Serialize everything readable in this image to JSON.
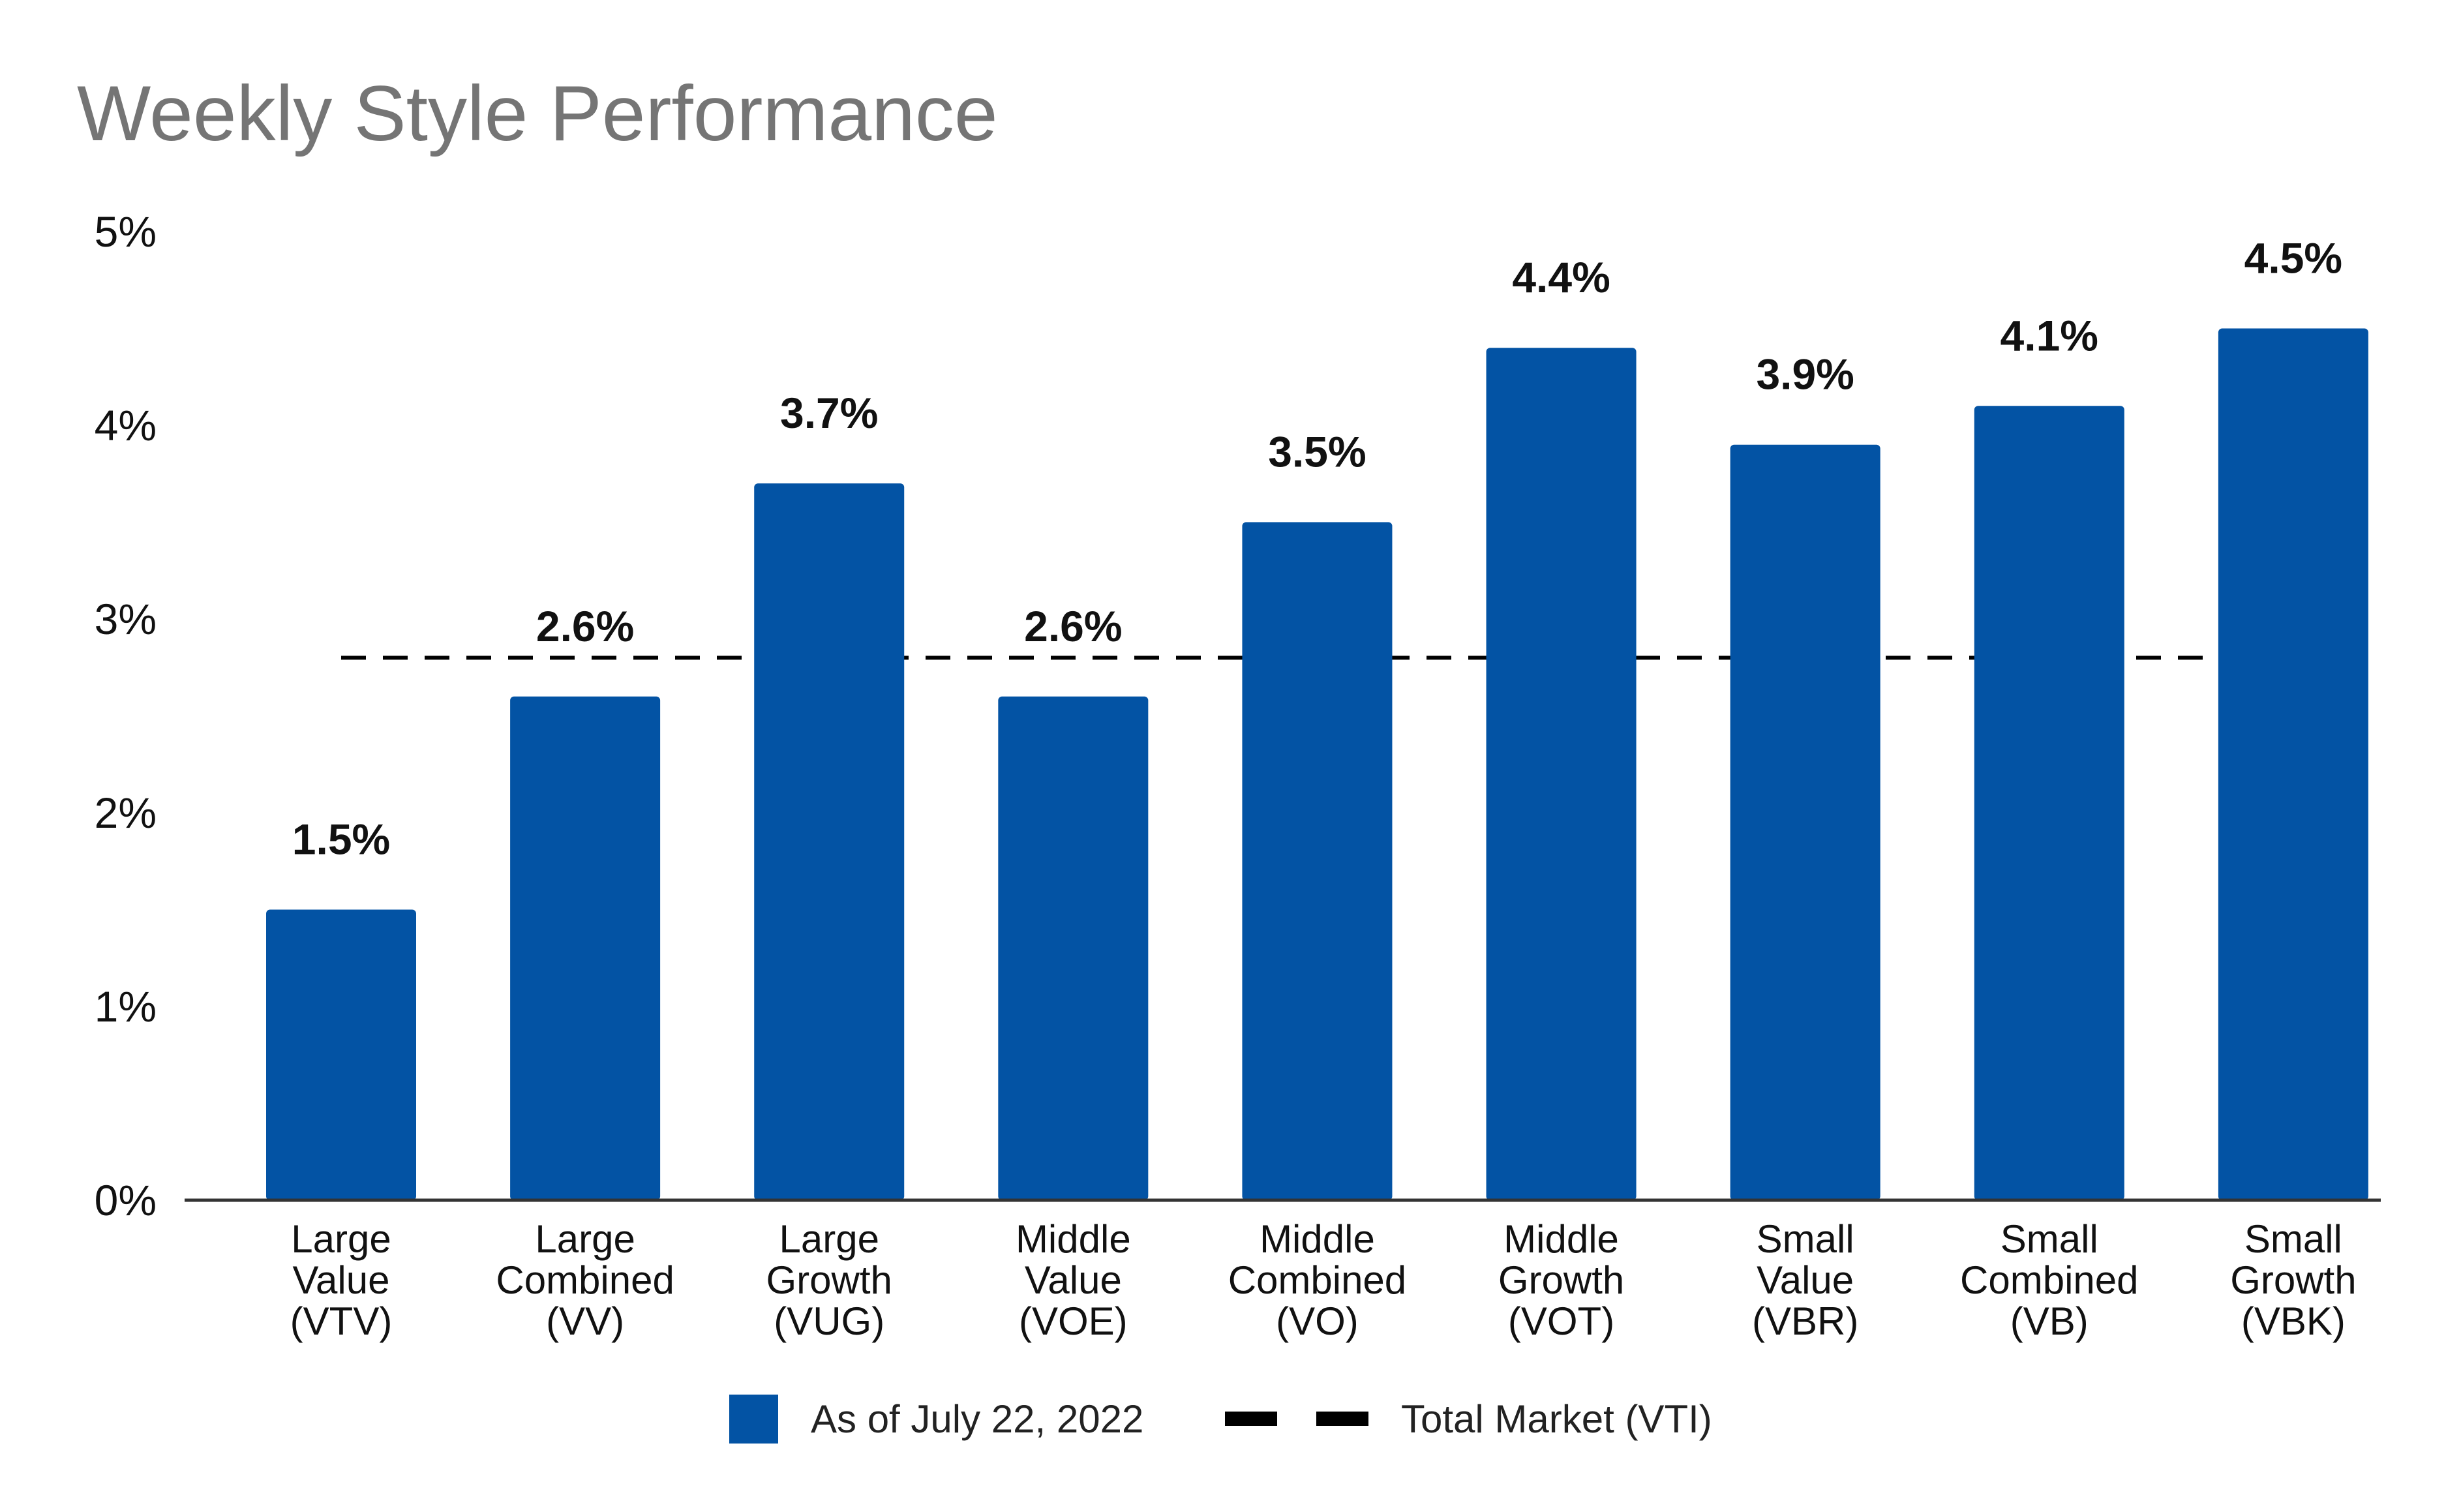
{
  "chart_data": {
    "type": "bar",
    "title": "Weekly Style Performance",
    "categories": [
      [
        "Large",
        "Value",
        "(VTV)"
      ],
      [
        "Large",
        "Combined",
        "(VV)"
      ],
      [
        "Large",
        "Growth",
        "(VUG)"
      ],
      [
        "Middle",
        "Value",
        "(VOE)"
      ],
      [
        "Middle",
        "Combined",
        "(VO)"
      ],
      [
        "Middle",
        "Growth",
        "(VOT)"
      ],
      [
        "Small",
        "Value",
        "(VBR)"
      ],
      [
        "Small",
        "Combined",
        "(VB)"
      ],
      [
        "Small",
        "Growth",
        "(VBK)"
      ]
    ],
    "series": [
      {
        "name": "As of July 22, 2022",
        "values": [
          1.5,
          2.6,
          3.7,
          2.6,
          3.5,
          4.4,
          3.9,
          4.1,
          4.5
        ],
        "data_labels": [
          "1.5%",
          "2.6%",
          "3.7%",
          "2.6%",
          "3.5%",
          "4.4%",
          "3.9%",
          "4.1%",
          "4.5%"
        ],
        "color": "#0353A4"
      }
    ],
    "reference_line": {
      "name": "Total Market (VTI)",
      "value": 2.8,
      "style": "dashed",
      "color": "#000000"
    },
    "xlabel": "",
    "ylabel": "",
    "ylim": [
      0,
      5
    ],
    "yticks": [
      0,
      1,
      2,
      3,
      4,
      5
    ],
    "ytick_labels": [
      "0%",
      "1%",
      "2%",
      "3%",
      "4%",
      "5%"
    ],
    "grid": false,
    "legend": {
      "position": "bottom"
    }
  }
}
